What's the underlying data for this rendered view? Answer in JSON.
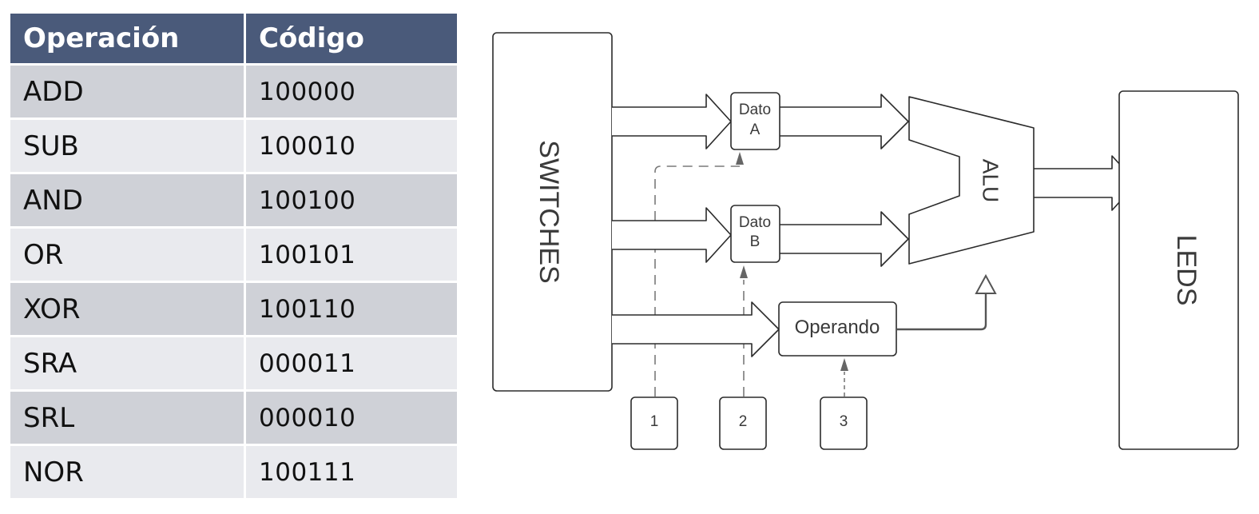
{
  "colors": {
    "header_bg": "#4a5a7a",
    "row_dark": "#cfd1d7",
    "row_light": "#e9eaee",
    "stroke": "#2b2b2b",
    "dashed": "#7a7a7a"
  },
  "table": {
    "headers": [
      "Operación",
      "Código"
    ],
    "rows": [
      {
        "op": "ADD",
        "code": "100000"
      },
      {
        "op": "SUB",
        "code": "100010"
      },
      {
        "op": "AND",
        "code": "100100"
      },
      {
        "op": "OR",
        "code": "100101"
      },
      {
        "op": "XOR",
        "code": "100110"
      },
      {
        "op": "SRA",
        "code": "000011"
      },
      {
        "op": "SRL",
        "code": "000010"
      },
      {
        "op": "NOR",
        "code": "100111"
      }
    ]
  },
  "diagram": {
    "switches": "SWITCHES",
    "dato_a": [
      "Dato",
      "A"
    ],
    "dato_b": [
      "Dato",
      "B"
    ],
    "alu": "ALU",
    "operando": "Operando",
    "leds": "LEDS",
    "buttons": [
      "1",
      "2",
      "3"
    ]
  }
}
